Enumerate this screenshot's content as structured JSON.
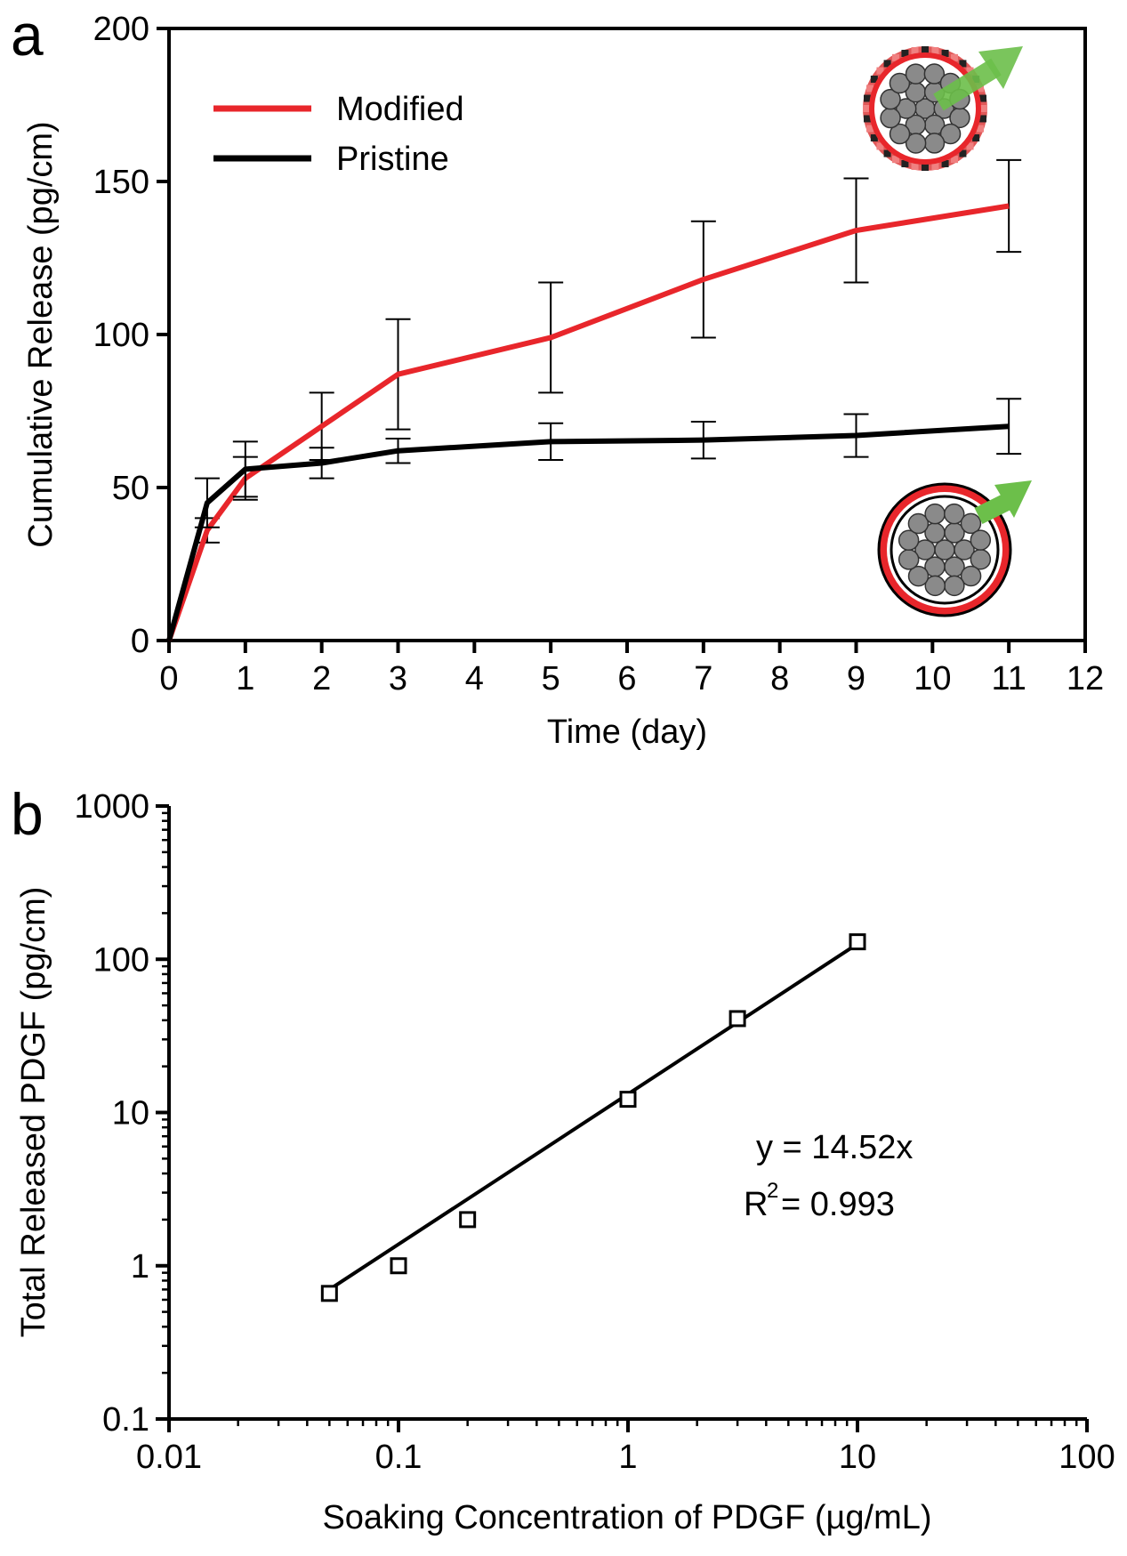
{
  "chart_data": [
    {
      "panel_label": "a",
      "type": "line",
      "title": "",
      "xlabel": "Time (day)",
      "ylabel": "Cumulative Release (pg/cm)",
      "xlim": [
        0,
        12
      ],
      "ylim": [
        0,
        200
      ],
      "x_ticks": [
        0,
        1,
        2,
        3,
        4,
        5,
        6,
        7,
        8,
        9,
        10,
        11,
        12
      ],
      "y_ticks": [
        0,
        50,
        100,
        150,
        200
      ],
      "grid": false,
      "legend_position": "top-left",
      "series": [
        {
          "name": "Modified",
          "color": "#e8262b",
          "x": [
            0,
            0.5,
            1,
            2,
            3,
            5,
            7,
            9,
            11
          ],
          "y": [
            0,
            36,
            53,
            70,
            87,
            99,
            118,
            134,
            142
          ],
          "err": [
            0,
            4,
            7,
            11,
            18,
            18,
            19,
            17,
            15
          ]
        },
        {
          "name": "Pristine",
          "color": "#000000",
          "x": [
            0,
            0.5,
            1,
            2,
            3,
            5,
            7,
            9,
            11
          ],
          "y": [
            0,
            45,
            56,
            58,
            62,
            65,
            65.5,
            67,
            70
          ],
          "err": [
            0,
            8,
            9,
            5,
            4,
            6,
            6,
            7,
            9
          ]
        }
      ],
      "icons": [
        "modified-fiber-icon",
        "pristine-fiber-icon",
        "release-arrow-icon"
      ]
    },
    {
      "panel_label": "b",
      "type": "scatter",
      "title": "",
      "xlabel": "Soaking Concentration of PDGF (µg/mL)",
      "ylabel": "Total Released PDGF (pg/cm)",
      "xscale": "log",
      "yscale": "log",
      "xlim": [
        0.01,
        100
      ],
      "ylim": [
        0.1,
        1000
      ],
      "x_ticks": [
        "0.01",
        "0.1",
        "1",
        "10",
        "100"
      ],
      "y_ticks": [
        "0.1",
        "1",
        "10",
        "100",
        "1000"
      ],
      "grid": false,
      "points": {
        "x": [
          0.05,
          0.1,
          0.2,
          1,
          3,
          10
        ],
        "y": [
          0.66,
          1.0,
          2.0,
          12.2,
          41,
          130
        ]
      },
      "fit_line": {
        "x": [
          0.05,
          10
        ],
        "y": [
          0.7,
          126
        ]
      },
      "annotation": {
        "equation": "y = 14.52x",
        "r2_prefix": "R",
        "r2_sup": "2",
        "r2_value": "= 0.993"
      }
    }
  ]
}
